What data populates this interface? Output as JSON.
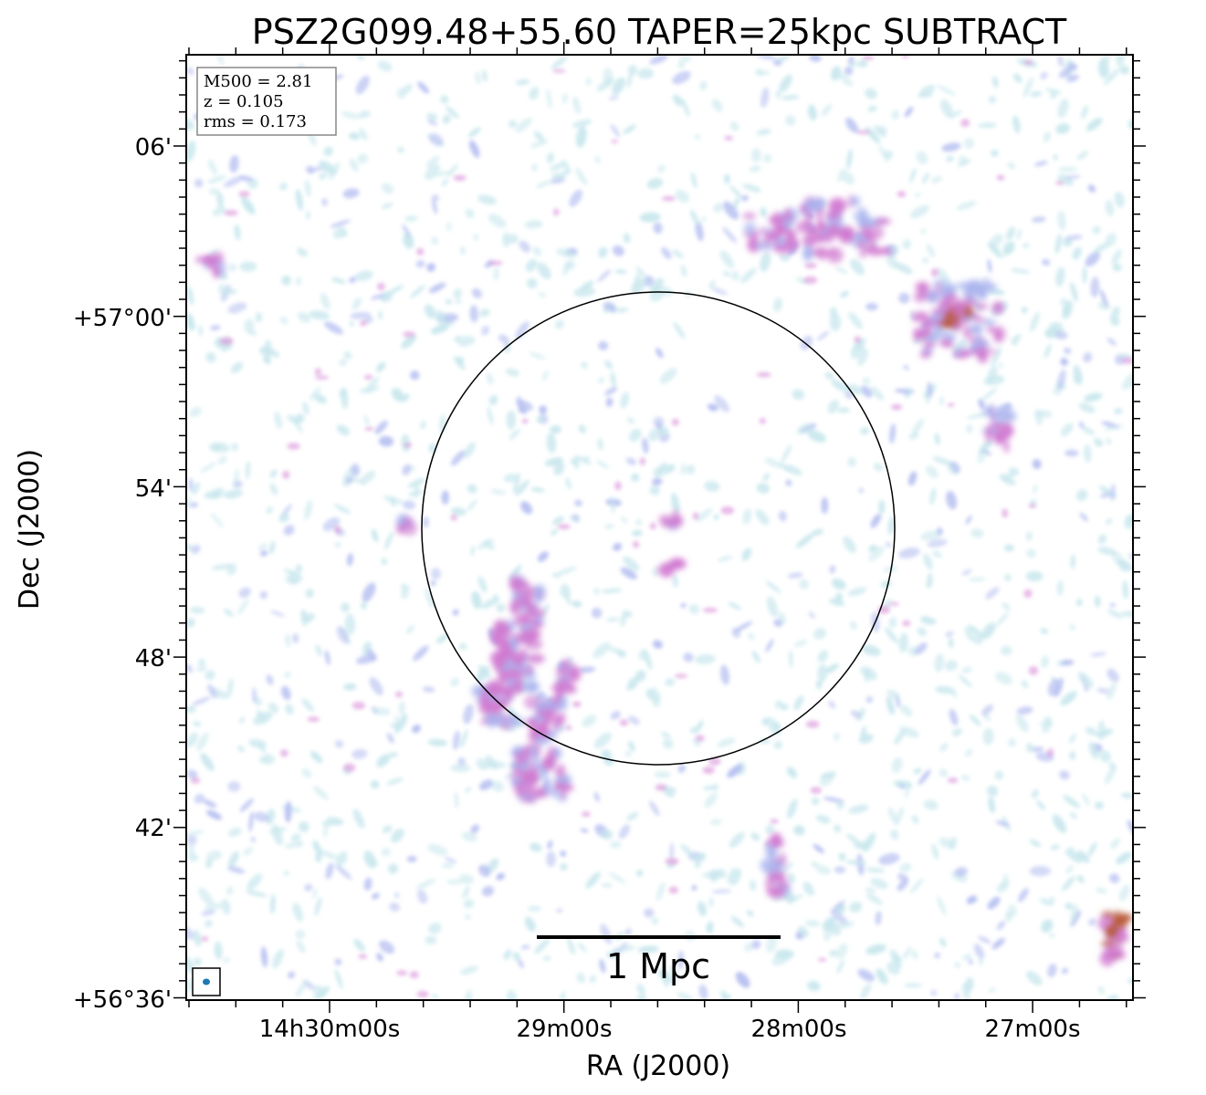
{
  "figure": {
    "title": "PSZ2G099.48+55.60 TAPER=25kpc SUBTRACT",
    "xlabel": "RA (J2000)",
    "ylabel": "Dec (J2000)",
    "x_ticks": [
      "14h30m00s",
      "29m00s",
      "28m00s",
      "27m00s"
    ],
    "y_ticks": [
      "06'",
      "+57°00'",
      "54'",
      "48'",
      "42'",
      "+56°36'"
    ],
    "info_box": {
      "line1": "M500 = 2.81",
      "line2": "z = 0.105",
      "line3": "rms = 0.173"
    },
    "scale_bar_label": "1 Mpc",
    "colors": {
      "low_emission": "#bfe3ea",
      "mid_emission": "#a9b4ee",
      "high_emission": "#d07ad0",
      "peak_emission": "#b85a3a",
      "beam": "#1f77b4"
    }
  }
}
